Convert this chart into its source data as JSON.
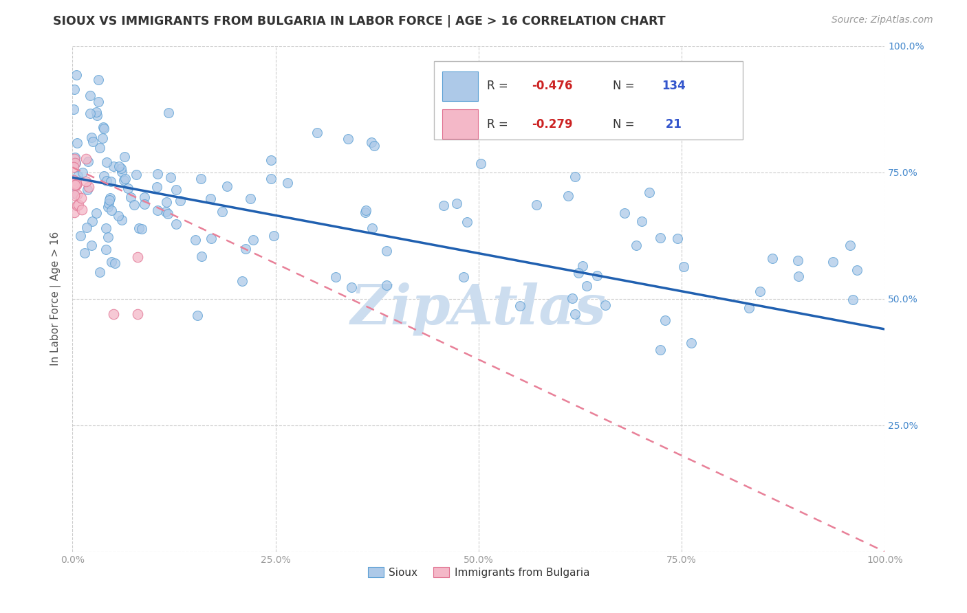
{
  "title": "SIOUX VS IMMIGRANTS FROM BULGARIA IN LABOR FORCE | AGE > 16 CORRELATION CHART",
  "source_text": "Source: ZipAtlas.com",
  "ylabel": "In Labor Force | Age > 16",
  "legend_label1": "Sioux",
  "legend_label2": "Immigrants from Bulgaria",
  "color_sioux_fill": "#adc9e8",
  "color_sioux_edge": "#5a9fd4",
  "color_bulgaria_fill": "#f4b8c8",
  "color_bulgaria_edge": "#e07090",
  "color_line_sioux": "#2060b0",
  "color_line_bulgaria": "#e88098",
  "color_watermark": "#ccddef",
  "background_color": "#ffffff",
  "grid_color": "#cccccc",
  "title_color": "#333333",
  "axis_label_color": "#555555",
  "tick_color_x": "#999999",
  "tick_color_y_right": "#4488cc",
  "r_value_color": "#cc2222",
  "n_value_color": "#3355cc",
  "watermark": "ZipAtlas"
}
